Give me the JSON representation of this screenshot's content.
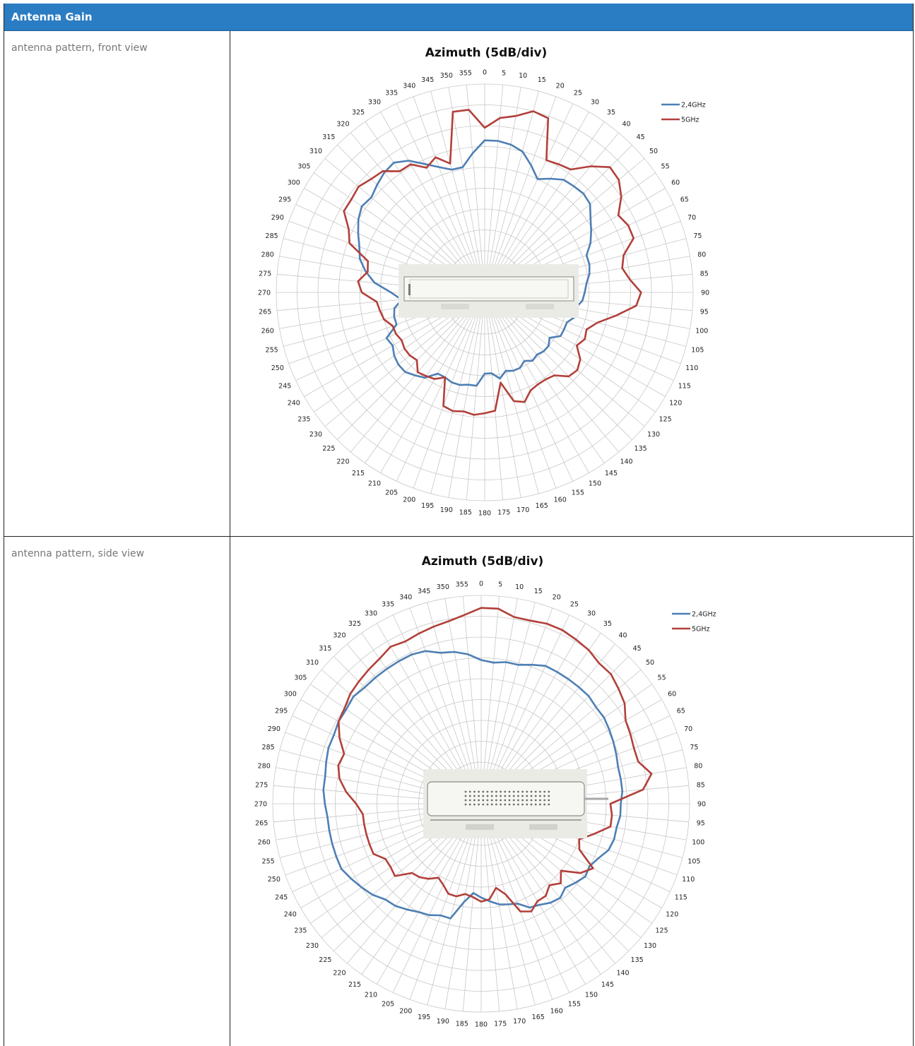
{
  "header": {
    "title": "Antenna Gain"
  },
  "rows": [
    {
      "label": "antenna pattern, front view"
    },
    {
      "label": "antenna pattern, side view"
    }
  ],
  "chart_data": [
    {
      "type": "radar",
      "title": "Azimuth (5dB/div)",
      "angle_ticks": [
        0,
        5,
        10,
        15,
        20,
        25,
        30,
        35,
        40,
        45,
        50,
        55,
        60,
        65,
        70,
        75,
        80,
        85,
        90,
        95,
        100,
        105,
        110,
        115,
        120,
        125,
        130,
        135,
        140,
        145,
        150,
        155,
        160,
        165,
        170,
        175,
        180,
        185,
        190,
        195,
        200,
        205,
        210,
        215,
        220,
        225,
        230,
        235,
        240,
        245,
        250,
        255,
        260,
        265,
        270,
        275,
        280,
        285,
        290,
        295,
        300,
        305,
        310,
        315,
        320,
        325,
        330,
        335,
        340,
        345,
        350,
        355
      ],
      "radial_divisions": 10,
      "legend_position": "top-right",
      "legend": [
        "2,4GHz",
        "5GHz"
      ],
      "series": [
        {
          "name": "2,4GHz",
          "color": "#4e7fb4",
          "r": [
            0.73,
            0.73,
            0.72,
            0.7,
            0.65,
            0.6,
            0.63,
            0.66,
            0.665,
            0.67,
            0.66,
            0.62,
            0.59,
            0.56,
            0.52,
            0.52,
            0.51,
            0.49,
            0.48,
            0.47,
            0.44,
            0.45,
            0.42,
            0.42,
            0.42,
            0.38,
            0.4,
            0.4,
            0.39,
            0.4,
            0.38,
            0.4,
            0.4,
            0.39,
            0.42,
            0.39,
            0.39,
            0.45,
            0.45,
            0.46,
            0.46,
            0.45,
            0.45,
            0.5,
            0.52,
            0.54,
            0.54,
            0.53,
            0.51,
            0.52,
            0.45,
            0.45,
            0.44,
            0.4,
            0.45,
            0.53,
            0.58,
            0.62,
            0.64,
            0.67,
            0.7,
            0.72,
            0.71,
            0.73,
            0.75,
            0.76,
            0.73,
            0.68,
            0.64,
            0.61,
            0.61,
            0.67
          ]
        },
        {
          "name": "5GHz",
          "color": "#b2403a",
          "r": [
            0.79,
            0.84,
            0.86,
            0.9,
            0.89,
            0.7,
            0.71,
            0.72,
            0.79,
            0.85,
            0.84,
            0.8,
            0.74,
            0.76,
            0.76,
            0.69,
            0.67,
            0.7,
            0.75,
            0.73,
            0.64,
            0.56,
            0.52,
            0.53,
            0.51,
            0.56,
            0.58,
            0.57,
            0.52,
            0.51,
            0.51,
            0.52,
            0.56,
            0.54,
            0.44,
            0.57,
            0.58,
            0.59,
            0.58,
            0.59,
            0.58,
            0.45,
            0.48,
            0.49,
            0.5,
            0.46,
            0.47,
            0.47,
            0.46,
            0.47,
            0.47,
            0.5,
            0.51,
            0.52,
            0.59,
            0.61,
            0.57,
            0.58,
            0.69,
            0.72,
            0.78,
            0.78,
            0.79,
            0.77,
            0.76,
            0.71,
            0.71,
            0.66,
            0.69,
            0.64,
            0.88,
            0.88
          ]
        }
      ]
    },
    {
      "type": "radar",
      "title": "Azimuth (5dB/div)",
      "angle_ticks": [
        0,
        5,
        10,
        15,
        20,
        25,
        30,
        35,
        40,
        45,
        50,
        55,
        60,
        65,
        70,
        75,
        80,
        85,
        90,
        95,
        100,
        105,
        110,
        115,
        120,
        125,
        130,
        135,
        140,
        145,
        150,
        155,
        160,
        165,
        170,
        175,
        180,
        185,
        190,
        195,
        200,
        205,
        210,
        215,
        220,
        225,
        230,
        235,
        240,
        245,
        250,
        255,
        260,
        265,
        270,
        275,
        280,
        285,
        290,
        295,
        300,
        305,
        310,
        315,
        320,
        325,
        330,
        335,
        340,
        345,
        350,
        355
      ],
      "radial_divisions": 10,
      "legend_position": "top-right",
      "legend": [
        "2,4GHz",
        "5GHz"
      ],
      "series": [
        {
          "name": "2,4GHz",
          "color": "#4e7fb4",
          "r": [
            0.69,
            0.68,
            0.69,
            0.69,
            0.71,
            0.73,
            0.73,
            0.73,
            0.73,
            0.73,
            0.72,
            0.72,
            0.71,
            0.7,
            0.69,
            0.68,
            0.68,
            0.68,
            0.67,
            0.67,
            0.66,
            0.66,
            0.65,
            0.62,
            0.6,
            0.61,
            0.59,
            0.57,
            0.59,
            0.58,
            0.56,
            0.55,
            0.51,
            0.5,
            0.49,
            0.47,
            0.45,
            0.43,
            0.48,
            0.57,
            0.57,
            0.59,
            0.6,
            0.62,
            0.64,
            0.65,
            0.68,
            0.7,
            0.72,
            0.74,
            0.74,
            0.74,
            0.74,
            0.74,
            0.75,
            0.76,
            0.76,
            0.77,
            0.78,
            0.78,
            0.79,
            0.79,
            0.8,
            0.79,
            0.79,
            0.79,
            0.79,
            0.79,
            0.78,
            0.75,
            0.74,
            0.72
          ]
        },
        {
          "name": "5GHz",
          "color": "#b2403a",
          "r": [
            0.94,
            0.94,
            0.91,
            0.91,
            0.92,
            0.92,
            0.91,
            0.9,
            0.88,
            0.88,
            0.86,
            0.84,
            0.8,
            0.79,
            0.78,
            0.78,
            0.83,
            0.78,
            0.62,
            0.63,
            0.63,
            0.56,
            0.5,
            0.52,
            0.62,
            0.58,
            0.5,
            0.54,
            0.51,
            0.54,
            0.54,
            0.57,
            0.55,
            0.45,
            0.41,
            0.46,
            0.47,
            0.45,
            0.44,
            0.46,
            0.46,
            0.43,
            0.41,
            0.44,
            0.46,
            0.47,
            0.54,
            0.53,
            0.53,
            0.57,
            0.57,
            0.57,
            0.57,
            0.57,
            0.6,
            0.65,
            0.69,
            0.71,
            0.7,
            0.75,
            0.79,
            0.8,
            0.82,
            0.83,
            0.84,
            0.85,
            0.87,
            0.86,
            0.87,
            0.88,
            0.89,
            0.91
          ]
        }
      ]
    }
  ]
}
